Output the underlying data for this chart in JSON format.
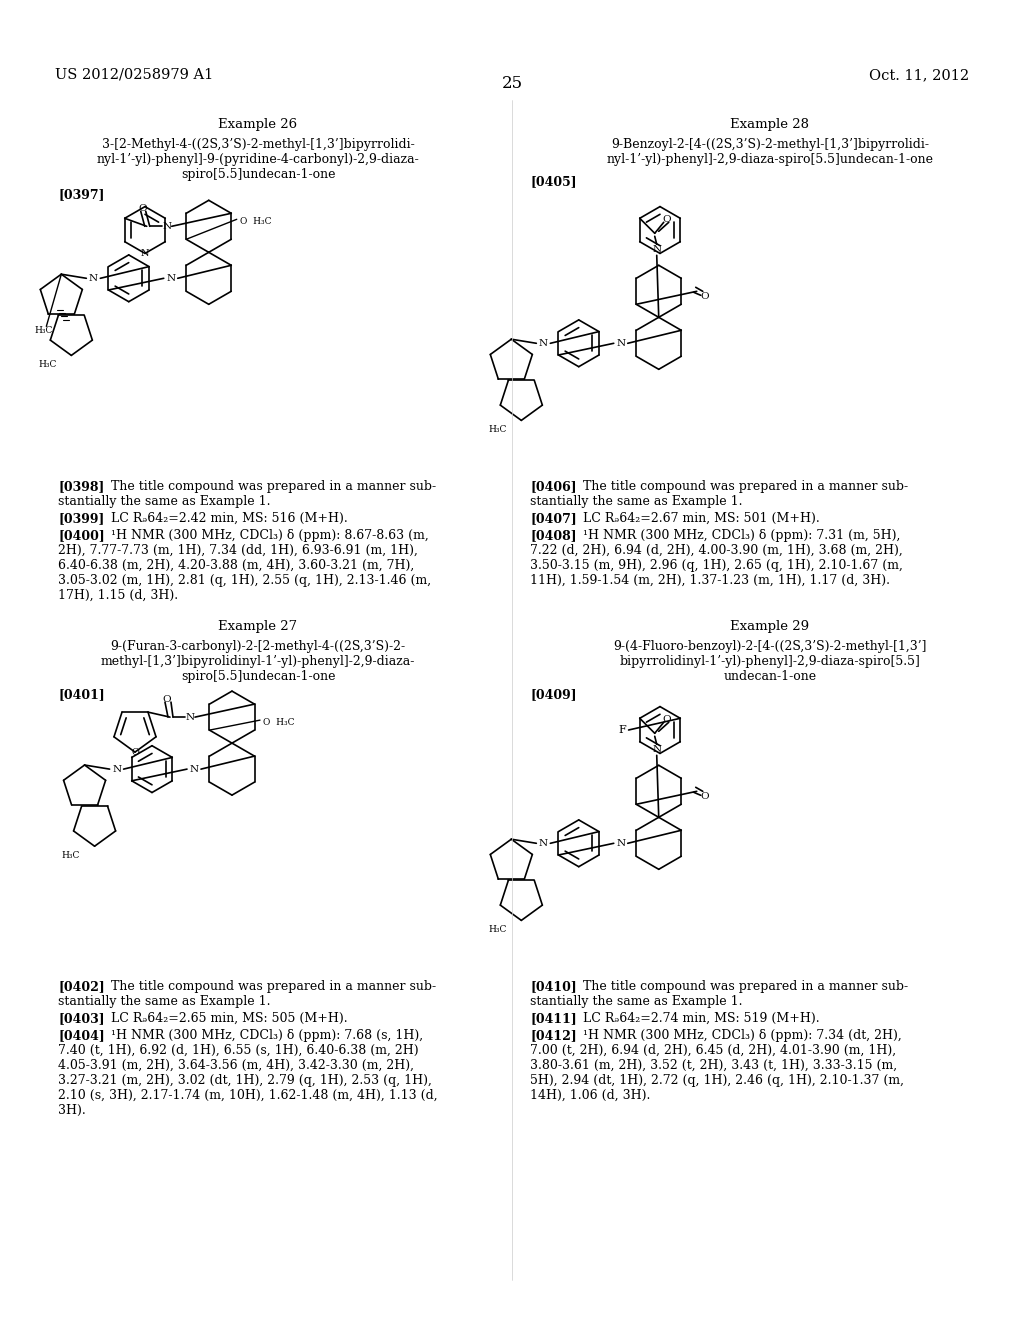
{
  "bg": "#ffffff",
  "header_left": "US 2012/0258979 A1",
  "header_right": "Oct. 11, 2012",
  "page_num": "25",
  "ex26_title": "Example 26",
  "ex26_name1": "3-[2-Methyl-4-((2S,3’S)-2-methyl-[1,3’]bipyrrolidi-",
  "ex26_name2": "nyl-1’-yl)-phenyl]-9-(pyridine-4-carbonyl)-2,9-diaza-",
  "ex26_name3": "spiro[5.5]undecan-1-one",
  "ex26_ref": "[0397]",
  "ex26_0398a": "[0398]",
  "ex26_0398b": "    The title compound was prepared in a manner sub-",
  "ex26_0398c": "stantially the same as Example 1.",
  "ex26_0399a": "[0399]",
  "ex26_0399b": "    LC Rₔ64₂=2.42 min, MS: 516 (M+H).",
  "ex26_0400a": "[0400]",
  "ex26_0400b": "    ¹H NMR (300 MHz, CDCl₃) δ (ppm): 8.67-8.63 (m,",
  "ex26_0400c": "2H), 7.77-7.73 (m, 1H), 7.34 (dd, 1H), 6.93-6.91 (m, 1H),",
  "ex26_0400d": "6.40-6.38 (m, 2H), 4.20-3.88 (m, 4H), 3.60-3.21 (m, 7H),",
  "ex26_0400e": "3.05-3.02 (m, 1H), 2.81 (q, 1H), 2.55 (q, 1H), 2.13-1.46 (m,",
  "ex26_0400f": "17H), 1.15 (d, 3H).",
  "ex27_title": "Example 27",
  "ex27_name1": "9-(Furan-3-carbonyl)-2-[2-methyl-4-((2S,3’S)-2-",
  "ex27_name2": "methyl-[1,3’]bipyrolidinyl-1’-yl)-phenyl]-2,9-diaza-",
  "ex27_name3": "spiro[5.5]undecan-1-one",
  "ex27_ref": "[0401]",
  "ex27_0402a": "[0402]",
  "ex27_0402b": "    The title compound was prepared in a manner sub-",
  "ex27_0402c": "stantially the same as Example 1.",
  "ex27_0403a": "[0403]",
  "ex27_0403b": "    LC Rₔ64₂=2.65 min, MS: 505 (M+H).",
  "ex27_0404a": "[0404]",
  "ex27_0404b": "    ¹H NMR (300 MHz, CDCl₃) δ (ppm): 7.68 (s, 1H),",
  "ex27_0404c": "7.40 (t, 1H), 6.92 (d, 1H), 6.55 (s, 1H), 6.40-6.38 (m, 2H)",
  "ex27_0404d": "4.05-3.91 (m, 2H), 3.64-3.56 (m, 4H), 3.42-3.30 (m, 2H),",
  "ex27_0404e": "3.27-3.21 (m, 2H), 3.02 (dt, 1H), 2.79 (q, 1H), 2.53 (q, 1H),",
  "ex27_0404f": "2.10 (s, 3H), 2.17-1.74 (m, 10H), 1.62-1.48 (m, 4H), 1.13 (d,",
  "ex27_0404g": "3H).",
  "ex28_title": "Example 28",
  "ex28_name1": "9-Benzoyl-2-[4-((2S,3’S)-2-methyl-[1,3’]bipyrrolidi-",
  "ex28_name2": "nyl-1’-yl)-phenyl]-2,9-diaza-spiro[5.5]undecan-1-one",
  "ex28_ref": "[0405]",
  "ex28_0406a": "[0406]",
  "ex28_0406b": "    The title compound was prepared in a manner sub-",
  "ex28_0406c": "stantially the same as Example 1.",
  "ex28_0407a": "[0407]",
  "ex28_0407b": "    LC Rₔ64₂=2.67 min, MS: 501 (M+H).",
  "ex28_0408a": "[0408]",
  "ex28_0408b": "    ¹H NMR (300 MHz, CDCl₃) δ (ppm): 7.31 (m, 5H),",
  "ex28_0408c": "7.22 (d, 2H), 6.94 (d, 2H), 4.00-3.90 (m, 1H), 3.68 (m, 2H),",
  "ex28_0408d": "3.50-3.15 (m, 9H), 2.96 (q, 1H), 2.65 (q, 1H), 2.10-1.67 (m,",
  "ex28_0408e": "11H), 1.59-1.54 (m, 2H), 1.37-1.23 (m, 1H), 1.17 (d, 3H).",
  "ex29_title": "Example 29",
  "ex29_name1": "9-(4-Fluoro-benzoyl)-2-[4-((2S,3’S)-2-methyl-[1,3’]",
  "ex29_name2": "bipyrrolidinyl-1’-yl)-phenyl]-2,9-diaza-spiro[5.5]",
  "ex29_name3": "undecan-1-one",
  "ex29_ref": "[0409]",
  "ex29_0410a": "[0410]",
  "ex29_0410b": "    The title compound was prepared in a manner sub-",
  "ex29_0410c": "stantially the same as Example 1.",
  "ex29_0411a": "[0411]",
  "ex29_0411b": "    LC Rₔ64₂=2.74 min, MS: 519 (M+H).",
  "ex29_0412a": "[0412]",
  "ex29_0412b": "    ¹H NMR (300 MHz, CDCl₃) δ (ppm): 7.34 (dt, 2H),",
  "ex29_0412c": "7.00 (t, 2H), 6.94 (d, 2H), 6.45 (d, 2H), 4.01-3.90 (m, 1H),",
  "ex29_0412d": "3.80-3.61 (m, 2H), 3.52 (t, 2H), 3.43 (t, 1H), 3.33-3.15 (m,",
  "ex29_0412e": "5H), 2.94 (dt, 1H), 2.72 (q, 1H), 2.46 (q, 1H), 2.10-1.37 (m,",
  "ex29_0412f": "14H), 1.06 (d, 3H)."
}
